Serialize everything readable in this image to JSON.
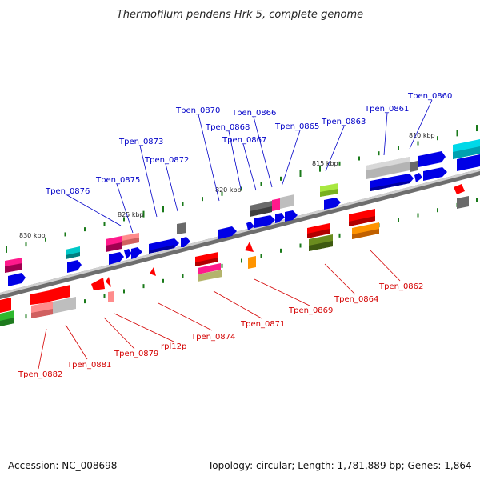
{
  "title": "Thermofilum pendens Hrk 5, complete genome",
  "footer": {
    "accession": "Accession: NC_008698",
    "topology": "Topology: circular; Length: 1,781,889 bp; Genes: 1,864"
  },
  "scale_labels": [
    "810 kbp",
    "815 kbp",
    "820 kbp",
    "825 kbp",
    "830 kbp"
  ],
  "colors": {
    "top_labels": "#0000c8",
    "bottom_labels": "#d40000",
    "backbone": "#8a8a8a",
    "tick": "#1a7a1a"
  },
  "top_labels": [
    "Tpen_0860",
    "Tpen_0861",
    "Tpen_0863",
    "Tpen_0865",
    "Tpen_0866",
    "Tpen_0867",
    "Tpen_0868",
    "Tpen_0870",
    "Tpen_0872",
    "Tpen_0873",
    "Tpen_0875",
    "Tpen_0876"
  ],
  "bottom_labels": [
    "Tpen_0862",
    "Tpen_0864",
    "Tpen_0869",
    "Tpen_0871",
    "Tpen_0874",
    "rpl12p",
    "Tpen_0879",
    "Tpen_0881",
    "Tpen_0882"
  ]
}
